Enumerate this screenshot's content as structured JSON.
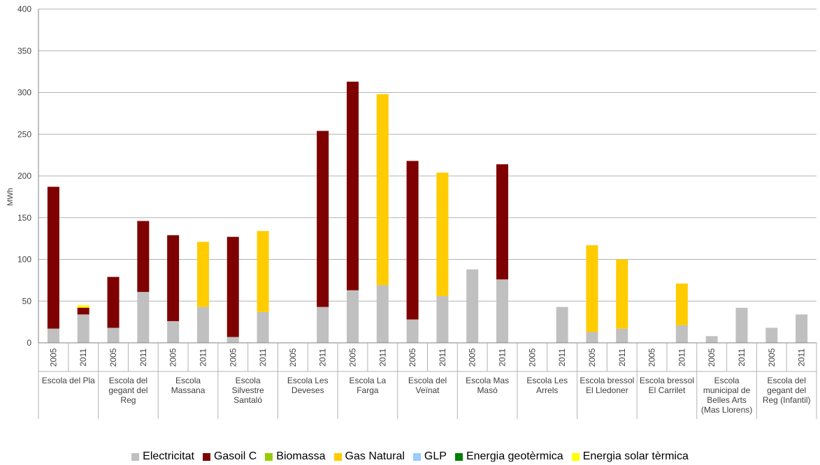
{
  "chart_data": {
    "type": "bar",
    "stacked": true,
    "title": "",
    "xlabel": "",
    "ylabel": "MWh",
    "ylim": [
      0,
      400
    ],
    "yticks": [
      0,
      50,
      100,
      150,
      200,
      250,
      300,
      350,
      400
    ],
    "grid": true,
    "legend_position": "bottom",
    "groups": [
      {
        "label": "Escola del Pla",
        "lines": [
          "Escola del Pla"
        ]
      },
      {
        "label": "Escola del gegant del Reg",
        "lines": [
          "Escola del",
          "gegant del",
          "Reg"
        ]
      },
      {
        "label": "Escola Massana",
        "lines": [
          "Escola",
          "Massana"
        ]
      },
      {
        "label": "Escola Silvestre Santaló",
        "lines": [
          "Escola",
          "Silvestre",
          "Santaló"
        ]
      },
      {
        "label": "Escola Les Deveses",
        "lines": [
          "Escola Les",
          "Deveses"
        ]
      },
      {
        "label": "Escola La Farga",
        "lines": [
          "Escola La",
          "Farga"
        ]
      },
      {
        "label": "Escola del Veïnat",
        "lines": [
          "Escola del",
          "Veïnat"
        ]
      },
      {
        "label": "Escola Mas Masó",
        "lines": [
          "Escola Mas",
          "Masó"
        ]
      },
      {
        "label": "Escola Les Arrels",
        "lines": [
          "Escola Les",
          "Arrels"
        ]
      },
      {
        "label": "Escola bressol El Lledoner",
        "lines": [
          "Escola bressol",
          "El Lledoner"
        ]
      },
      {
        "label": "Escola bressol El Carrilet",
        "lines": [
          "Escola bressol",
          "El Carrilet"
        ]
      },
      {
        "label": "Escola municipal de Belles Arts (Mas Llorens)",
        "lines": [
          "Escola",
          "municipal de",
          "Belles Arts",
          "(Mas Llorens)"
        ]
      },
      {
        "label": "Escola del gegant del Reg (Infantil)",
        "lines": [
          "Escola del",
          "gegant del",
          "Reg (Infantil)"
        ]
      }
    ],
    "categories": [
      "2005",
      "2011",
      "2005",
      "2011",
      "2005",
      "2011",
      "2005",
      "2011",
      "2005",
      "2011",
      "2005",
      "2011",
      "2005",
      "2011",
      "2005",
      "2011",
      "2005",
      "2011",
      "2005",
      "2011",
      "2005",
      "2011",
      "2005",
      "2011",
      "2005",
      "2011"
    ],
    "series": [
      {
        "name": "Electricitat",
        "color": "#c0c0c0",
        "values": [
          17,
          34,
          18,
          61,
          26,
          43,
          7,
          37,
          0,
          43,
          63,
          69,
          28,
          56,
          88,
          76,
          0,
          43,
          13,
          17,
          0,
          21,
          8,
          42,
          18,
          34
        ]
      },
      {
        "name": "Gasoil C",
        "color": "#7f0000",
        "values": [
          170,
          8,
          61,
          85,
          103,
          0,
          120,
          0,
          0,
          211,
          250,
          0,
          190,
          0,
          0,
          138,
          0,
          0,
          0,
          0,
          0,
          0,
          0,
          0,
          0,
          0
        ]
      },
      {
        "name": "Biomassa",
        "color": "#99cc00",
        "values": [
          0,
          0,
          0,
          0,
          0,
          0,
          0,
          0,
          0,
          0,
          0,
          0,
          0,
          0,
          0,
          0,
          0,
          0,
          0,
          0,
          0,
          0,
          0,
          0,
          0,
          0
        ]
      },
      {
        "name": "Gas Natural",
        "color": "#ffcc00",
        "values": [
          0,
          1,
          0,
          0,
          0,
          78,
          0,
          97,
          0,
          0,
          0,
          229,
          0,
          148,
          0,
          0,
          0,
          0,
          104,
          83,
          0,
          50,
          0,
          0,
          0,
          0
        ]
      },
      {
        "name": "GLP",
        "color": "#99ccff",
        "values": [
          0,
          0,
          0,
          0,
          0,
          0,
          0,
          0,
          0,
          0,
          0,
          0,
          0,
          0,
          0,
          0,
          0,
          0,
          0,
          0,
          0,
          0,
          0,
          0,
          0,
          0
        ]
      },
      {
        "name": "Energia geotèrmica",
        "color": "#008000",
        "values": [
          0,
          0,
          0,
          0,
          0,
          0,
          0,
          0,
          0,
          0,
          0,
          0,
          0,
          0,
          0,
          0,
          0,
          0,
          0,
          0,
          0,
          0,
          0,
          0,
          0,
          0
        ]
      },
      {
        "name": "Energia solar tèrmica",
        "color": "#ffff00",
        "values": [
          0,
          2,
          0,
          0,
          0,
          0,
          0,
          0,
          0,
          0,
          0,
          0,
          0,
          0,
          0,
          0,
          0,
          0,
          0,
          0,
          0,
          0,
          0,
          0,
          0,
          0
        ]
      }
    ]
  }
}
